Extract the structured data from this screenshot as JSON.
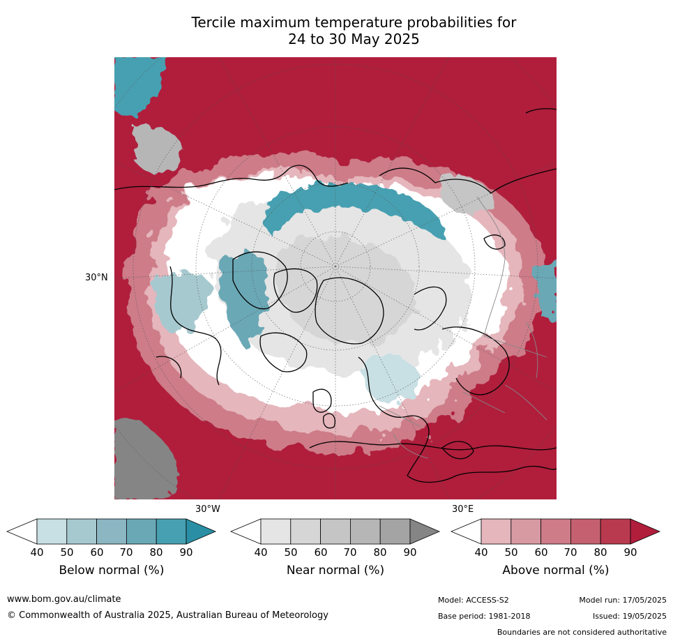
{
  "title_line1": "Tercile maximum temperature probabilities for",
  "title_line2": "24 to 30 May 2025",
  "map": {
    "lat_label": "30°N",
    "lon_label_west": "30°W",
    "lon_label_east": "30°E"
  },
  "colorbars": [
    {
      "label": "Below normal (%)",
      "ticks": [
        "40",
        "50",
        "60",
        "70",
        "80",
        "90"
      ],
      "colors": [
        "#ffffff",
        "#c8dfe4",
        "#a6c9cf",
        "#8bb6c2",
        "#6aa8b6",
        "#47a0b1",
        "#2a8fa4"
      ]
    },
    {
      "label": "Near normal (%)",
      "ticks": [
        "40",
        "50",
        "60",
        "70",
        "80",
        "90"
      ],
      "colors": [
        "#ffffff",
        "#e5e5e5",
        "#d6d6d6",
        "#c5c5c5",
        "#b6b6b6",
        "#a4a4a4",
        "#858585"
      ]
    },
    {
      "label": "Above normal (%)",
      "ticks": [
        "40",
        "50",
        "60",
        "70",
        "80",
        "90"
      ],
      "colors": [
        "#ffffff",
        "#e5b6bc",
        "#d89aa2",
        "#cd7c88",
        "#c4606f",
        "#b93a4e",
        "#b01e3c"
      ]
    }
  ],
  "footer": {
    "url": "www.bom.gov.au/climate",
    "copyright": "© Commonwealth of Australia 2025, Australian Bureau of Meteorology",
    "model": "Model: ACCESS-S2",
    "model_run": "Model run: 17/05/2025",
    "base_period": "Base period: 1981-2018",
    "issued": "Issued: 19/05/2025",
    "disclaimer": "Boundaries are not considered authoritative"
  }
}
